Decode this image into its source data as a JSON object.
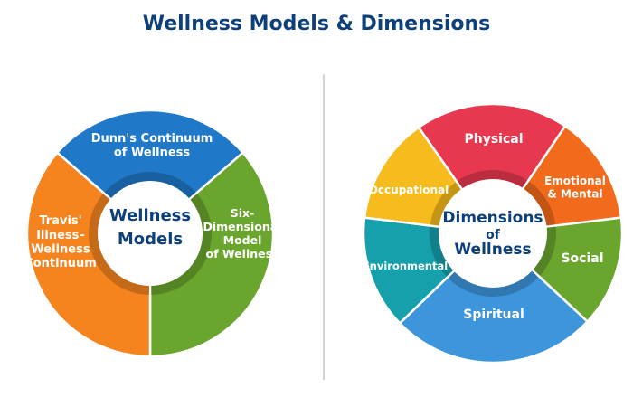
{
  "title": "Wellness Models & Dimensions",
  "models_wheel": {
    "center_label": [
      "Wellness",
      "Models"
    ],
    "segments": [
      {
        "label": [
          "Dunn's Continuum",
          "of Wellness"
        ],
        "color": "#1f78c8"
      },
      {
        "label": [
          "Six-",
          "Dimensional",
          "Model",
          "of Wellness"
        ],
        "color": "#6aa52e"
      },
      {
        "label": [
          "Travis'",
          "Illness–",
          "Wellness",
          "Continuum"
        ],
        "color": "#f5841f"
      }
    ]
  },
  "dimensions_wheel": {
    "center_label": [
      "Dimensions",
      "of",
      "Wellness"
    ],
    "segments": [
      {
        "label": [
          "Physical"
        ],
        "color": "#e8384f"
      },
      {
        "label": [
          "Emotional",
          "& Mental"
        ],
        "color": "#f26a1b"
      },
      {
        "label": [
          "Social"
        ],
        "color": "#6aa52e"
      },
      {
        "label": [
          "Spiritual"
        ],
        "color": "#3d96dc"
      },
      {
        "label": [
          "Environmental"
        ],
        "color": "#16a0ac"
      },
      {
        "label": [
          "Occupational"
        ],
        "color": "#f6bb1c"
      }
    ]
  }
}
